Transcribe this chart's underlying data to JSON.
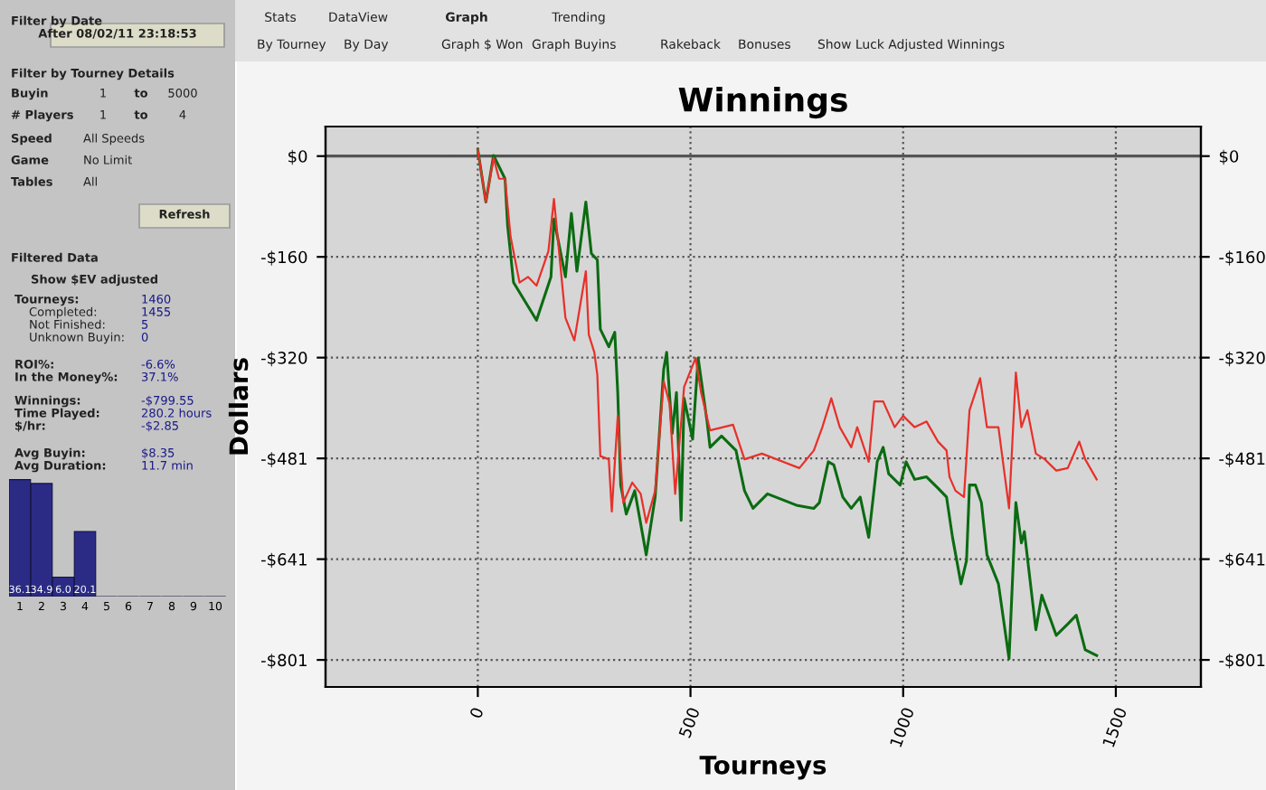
{
  "chart_data": [
    {
      "type": "other",
      "annotations": [
        "Filter by Date",
        "After 08/02/11 23:18:53",
        "Filter by Tourney Details",
        "Buyin",
        "1",
        "to",
        "5000",
        "# Players",
        "1",
        "to",
        "4",
        "Speed",
        "All Speeds",
        "Game",
        "No Limit",
        "Tables",
        "All",
        "Refresh",
        "Filtered Data",
        "Show $EV adjusted",
        "Tourneys:",
        "1460",
        "Completed:",
        "1455",
        "Not Finished:",
        "5",
        "Unknown Buyin:",
        "0",
        "ROI%:",
        "-6.6%",
        "In the Money%:",
        "37.1%",
        "Winnings:",
        "-$799.55",
        "Time Played:",
        "280.2 hours",
        "$/hr:",
        "-$2.85",
        "Avg Buyin:",
        "$8.35",
        "Avg Duration:",
        "11.7 min"
      ]
    },
    {
      "type": "bar",
      "categories": [
        "1",
        "2",
        "3",
        "4",
        "5",
        "6",
        "7",
        "8",
        "9",
        "10"
      ],
      "values": [
        36.1,
        34.9,
        6.0,
        20.1,
        null,
        null,
        null,
        null,
        null,
        null
      ],
      "color": "#2b2b86",
      "value_labels": [
        "36.1",
        "34.9",
        "6.0",
        "20.1",
        null,
        null,
        null,
        null,
        null,
        null
      ]
    },
    {
      "type": "other",
      "annotations": [
        "Stats",
        "DataView",
        "Graph",
        "Trending",
        "By Tourney",
        "By Day",
        "Graph $ Won",
        "Graph Buyins",
        "Rakeback",
        "Bonuses",
        "Show Luck Adjusted Winnings"
      ]
    },
    {
      "type": "line",
      "title": "Winnings",
      "xlabel": "Tourneys",
      "ylabel": "Dollars",
      "xlim": [
        -358,
        1700
      ],
      "xticks": [
        0,
        500,
        1000,
        1500
      ],
      "ylim": [
        -844,
        47
      ],
      "yticks": [
        {
          "value": 0,
          "label": "$0"
        },
        {
          "value": -160.2,
          "label": "-$160"
        },
        {
          "value": -320.4,
          "label": "-$320"
        },
        {
          "value": -480.6,
          "label": "-$481"
        },
        {
          "value": -640.8,
          "label": "-$641"
        },
        {
          "value": -801,
          "label": "-$801"
        }
      ],
      "y2lim": [
        -844,
        47
      ],
      "y2ticks": [
        {
          "value": 0,
          "label": "$0"
        },
        {
          "value": -160.2,
          "label": "-$160"
        },
        {
          "value": -320.4,
          "label": "-$320"
        },
        {
          "value": -480.6,
          "label": "-$481"
        },
        {
          "value": -640.8,
          "label": "-$641"
        },
        {
          "value": -801,
          "label": "-$801"
        }
      ],
      "grid": true,
      "line_style": "solid",
      "ref_lines": [
        {
          "axis": "y",
          "value": 0,
          "color": "#555555",
          "line_style": "solid"
        }
      ],
      "series": [
        {
          "color": "#e8302a",
          "x": [
            0,
            19,
            37,
            50,
            64,
            77,
            98,
            118,
            138,
            166,
            179,
            206,
            227,
            254,
            261,
            274,
            281,
            288,
            308,
            315,
            329,
            342,
            363,
            383,
            396,
            417,
            437,
            451,
            464,
            485,
            512,
            525,
            546,
            600,
            627,
            668,
            756,
            790,
            810,
            831,
            851,
            878,
            892,
            919,
            932,
            953,
            980,
            1000,
            1027,
            1055,
            1082,
            1102,
            1109,
            1123,
            1143,
            1156,
            1181,
            1197,
            1224,
            1249,
            1265,
            1278,
            1292,
            1312,
            1333,
            1360,
            1387,
            1414,
            1428,
            1455
          ],
          "values": [
            10,
            -73,
            -3,
            -36,
            -36,
            -128,
            -201,
            -192,
            -206,
            -151,
            -68,
            -257,
            -293,
            -183,
            -284,
            -312,
            -348,
            -477,
            -482,
            -565,
            -413,
            -551,
            -519,
            -537,
            -583,
            -532,
            -358,
            -394,
            -537,
            -367,
            -321,
            -376,
            -436,
            -427,
            -482,
            -473,
            -496,
            -468,
            -431,
            -385,
            -431,
            -463,
            -431,
            -486,
            -390,
            -390,
            -431,
            -413,
            -431,
            -422,
            -454,
            -468,
            -510,
            -532,
            -542,
            -404,
            -353,
            -431,
            -431,
            -560,
            -344,
            -431,
            -404,
            -473,
            -482,
            -500,
            -496,
            -454,
            -482,
            -514
          ]
        },
        {
          "color": "#0b6b12",
          "x": [
            0,
            19,
            37,
            64,
            70,
            84,
            138,
            172,
            179,
            206,
            220,
            233,
            254,
            267,
            281,
            288,
            308,
            322,
            329,
            336,
            349,
            369,
            396,
            417,
            437,
            444,
            457,
            467,
            478,
            485,
            505,
            518,
            539,
            546,
            573,
            607,
            627,
            647,
            681,
            749,
            790,
            803,
            824,
            837,
            858,
            878,
            899,
            919,
            939,
            953,
            966,
            993,
            1007,
            1027,
            1055,
            1082,
            1102,
            1116,
            1136,
            1149,
            1156,
            1170,
            1184,
            1197,
            1224,
            1249,
            1265,
            1278,
            1285,
            1312,
            1326,
            1360,
            1387,
            1407,
            1428,
            1455
          ],
          "values": [
            10,
            -73,
            1,
            -36,
            -110,
            -201,
            -261,
            -192,
            -100,
            -192,
            -91,
            -183,
            -73,
            -155,
            -165,
            -275,
            -303,
            -280,
            -376,
            -523,
            -569,
            -532,
            -634,
            -542,
            -339,
            -312,
            -441,
            -376,
            -579,
            -385,
            -450,
            -321,
            -422,
            -463,
            -445,
            -468,
            -532,
            -560,
            -537,
            -555,
            -560,
            -551,
            -486,
            -491,
            -542,
            -560,
            -542,
            -606,
            -486,
            -463,
            -505,
            -523,
            -486,
            -514,
            -510,
            -528,
            -542,
            -606,
            -680,
            -643,
            -523,
            -523,
            -551,
            -634,
            -680,
            -799,
            -551,
            -615,
            -597,
            -753,
            -698,
            -762,
            -744,
            -730,
            -785,
            -794
          ]
        }
      ]
    }
  ]
}
